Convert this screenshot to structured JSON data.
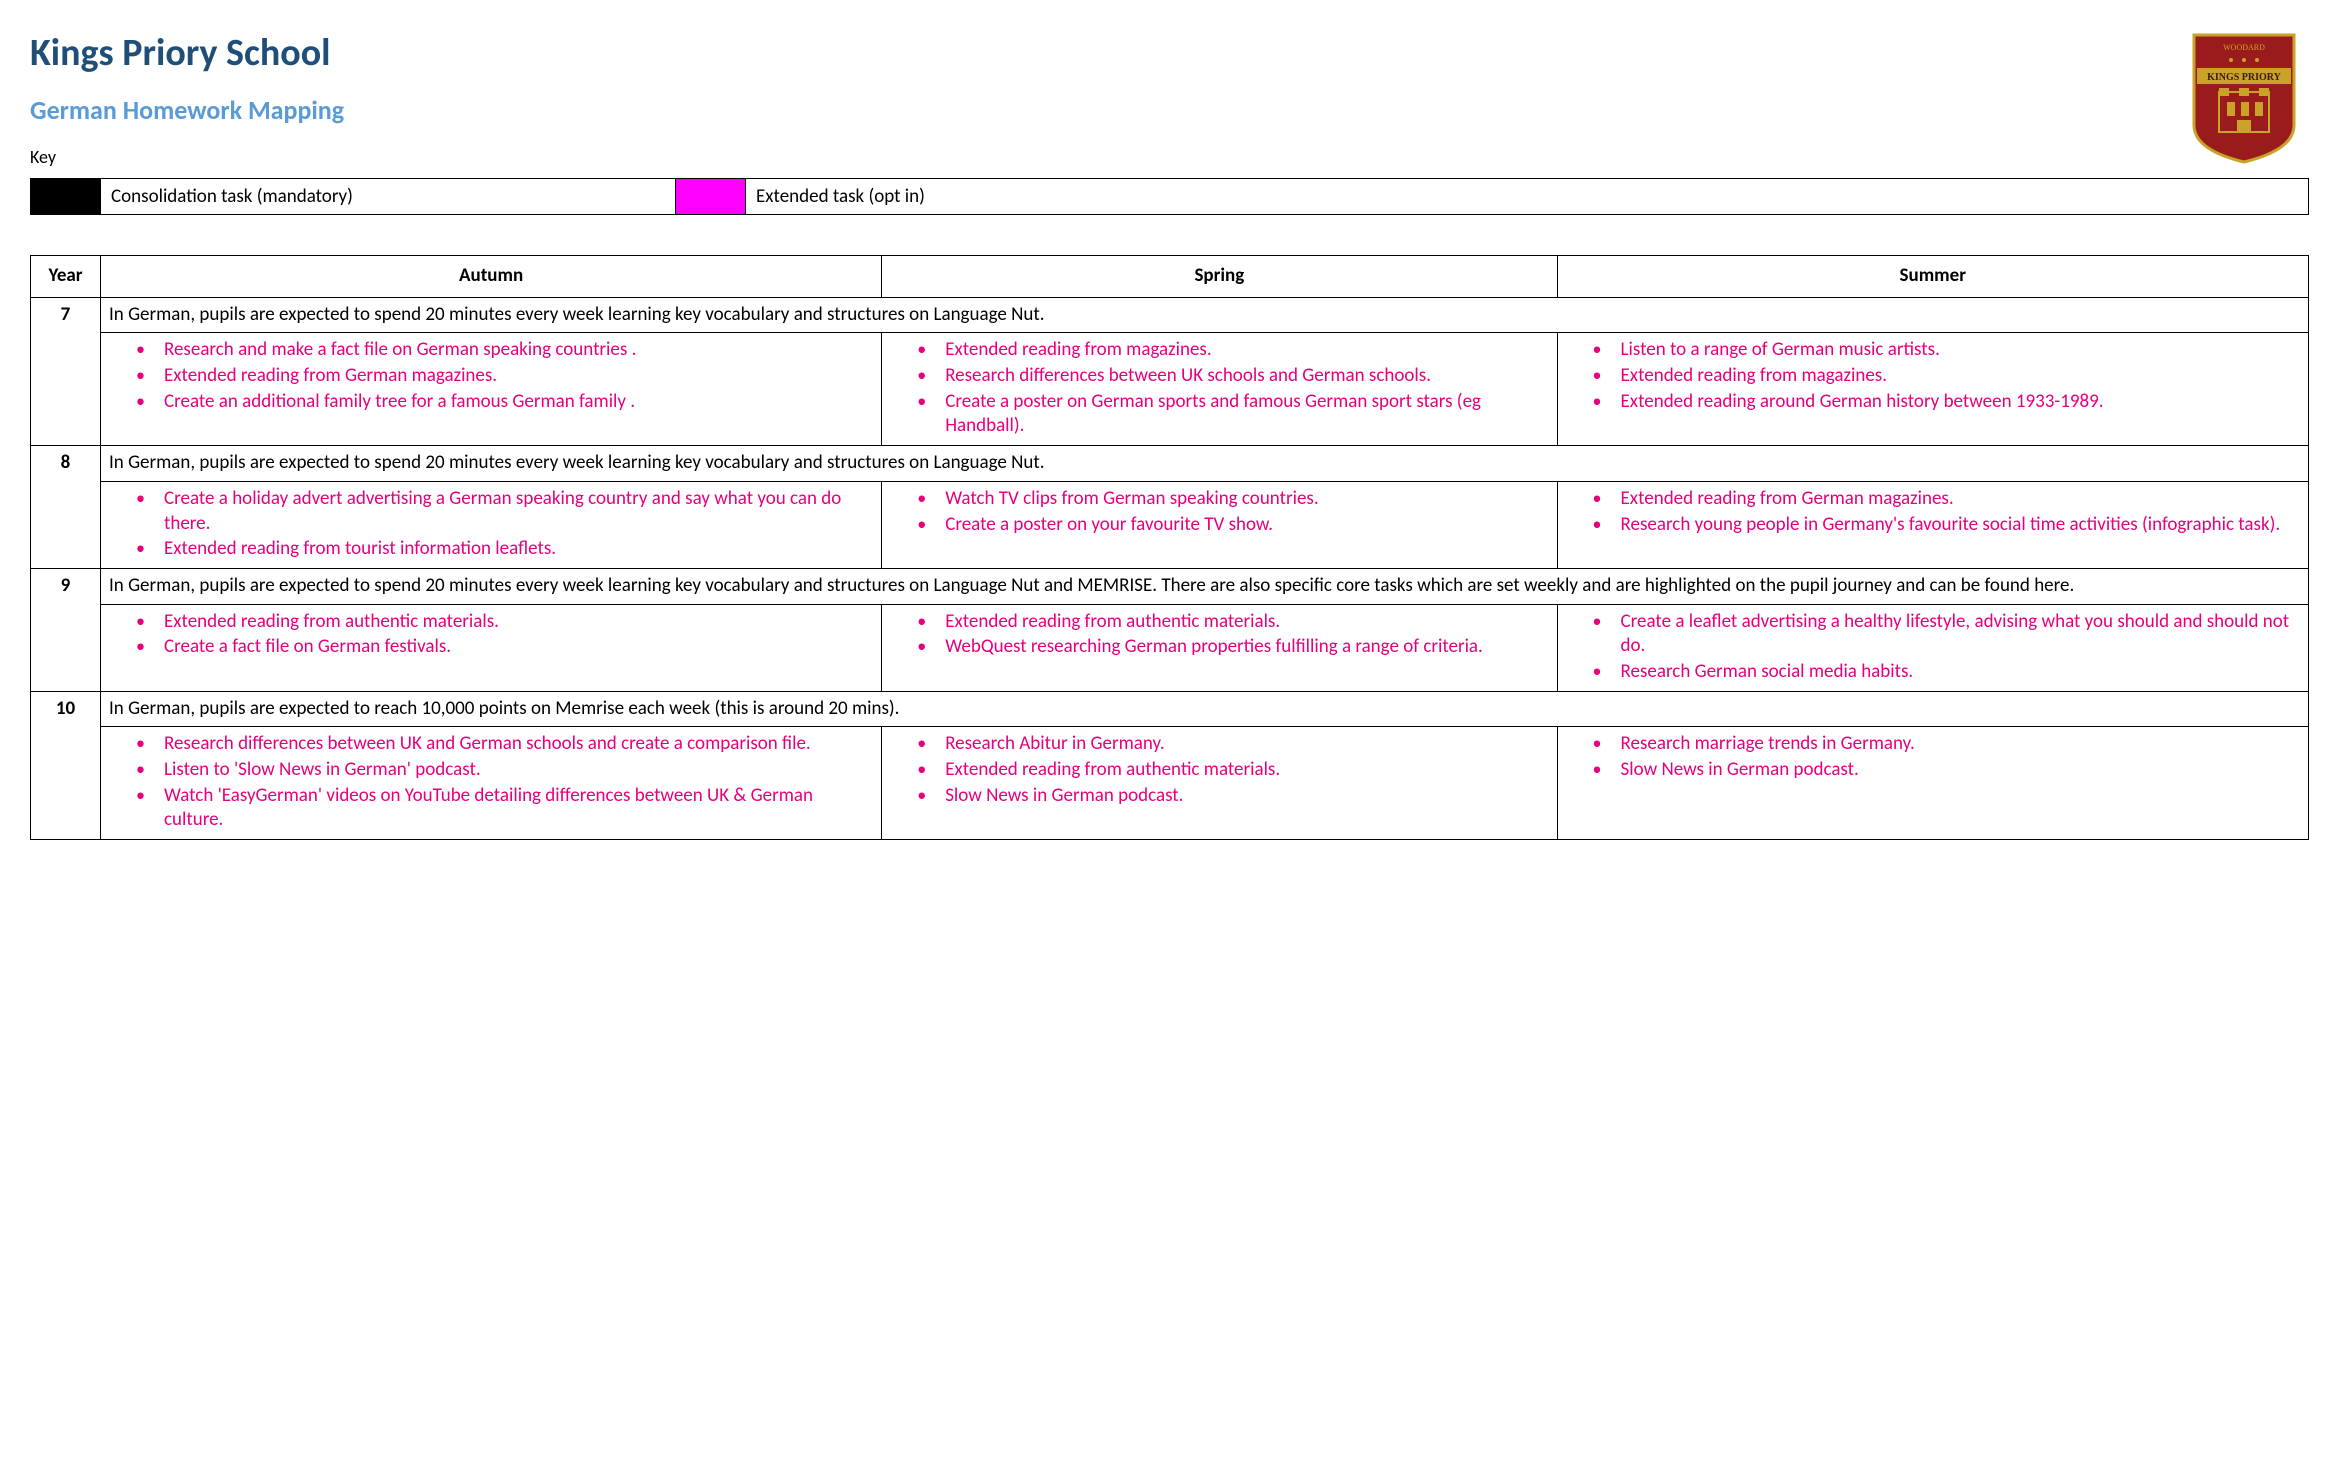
{
  "header": {
    "title": "Kings Priory School",
    "subtitle": "German Homework Mapping",
    "key_label": "Key",
    "logo": {
      "top_text": "WOODARD",
      "banner_text": "KINGS PRIORY",
      "shield_bg": "#9a1b1b",
      "shield_border": "#c9a227",
      "banner_bg": "#c9a227",
      "banner_text_color": "#3a1a1a"
    }
  },
  "key": [
    {
      "color": "#000000",
      "label": "Consolidation task (mandatory)"
    },
    {
      "color": "#ff00ff",
      "label": "Extended task (opt in)"
    }
  ],
  "columns": [
    "Year",
    "Autumn",
    "Spring",
    "Summer"
  ],
  "rows": [
    {
      "year": "7",
      "intro": "In German, pupils are expected to spend 20 minutes every week learning key vocabulary and structures on Language Nut.",
      "autumn": [
        "Research and make a fact file on German speaking countries .",
        "Extended reading from German magazines.",
        "Create an additional family tree for a famous German family ."
      ],
      "spring": [
        "Extended reading from magazines.",
        "Research differences between UK schools and German schools.",
        "Create a poster on German sports and famous German sport stars (eg Handball)."
      ],
      "summer": [
        "Listen to a range of German music artists.",
        "Extended reading from magazines.",
        "Extended reading around German history between 1933-1989."
      ]
    },
    {
      "year": "8",
      "intro": "In German, pupils are expected to spend 20 minutes every week learning key vocabulary and structures on Language Nut.",
      "autumn": [
        "Create a holiday advert advertising a German speaking country and say what you can do there.",
        "Extended reading from tourist information leaflets."
      ],
      "spring": [
        "Watch TV clips from German speaking countries.",
        "Create a poster on your favourite TV show."
      ],
      "summer": [
        "Extended reading from German magazines.",
        "Research young people in Germany's favourite social time activities (infographic task)."
      ]
    },
    {
      "year": "9",
      "intro": "In German, pupils are expected to spend 20 minutes every week learning key vocabulary and structures on Language Nut and MEMRISE. There are also specific core tasks which are set weekly and are highlighted on the pupil journey and can be found here.",
      "autumn": [
        "Extended reading from authentic materials.",
        "Create a fact file on German festivals."
      ],
      "spring": [
        "Extended reading from authentic materials.",
        "WebQuest researching German properties fulfilling a range of criteria."
      ],
      "summer": [
        "Create a leaflet advertising a healthy lifestyle, advising what you should and should not do.",
        "Research German social media habits."
      ]
    },
    {
      "year": "10",
      "intro": "In German, pupils are expected to reach 10,000 points on Memrise each week (this is around 20 mins).",
      "autumn": [
        "Research differences between UK and German schools and create a comparison file.",
        "Listen to 'Slow News in German' podcast.",
        "Watch 'EasyGerman' videos on YouTube detailing differences between UK & German culture."
      ],
      "spring": [
        "Research Abitur in Germany.",
        "Extended reading from authentic materials.",
        "Slow News in German podcast."
      ],
      "summer": [
        "Research marriage trends in Germany.",
        "Slow News in German podcast."
      ]
    }
  ]
}
